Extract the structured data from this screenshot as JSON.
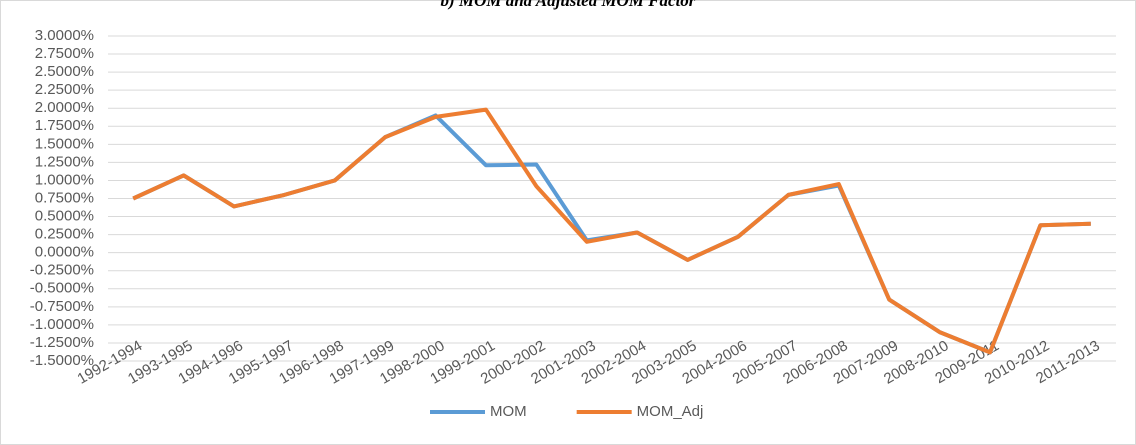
{
  "chart_data": {
    "type": "line",
    "title": "b) MOM and Adjusted MOM Factor",
    "categories": [
      "1992-1994",
      "1993-1995",
      "1994-1996",
      "1995-1997",
      "1996-1998",
      "1997-1999",
      "1998-2000",
      "1999-2001",
      "2000-2002",
      "2001-2003",
      "2002-2004",
      "2003-2005",
      "2004-2006",
      "2005-2007",
      "2006-2008",
      "2007-2009",
      "2008-2010",
      "2009-2011",
      "2010-2012",
      "2011-2013"
    ],
    "series": [
      {
        "name": "MOM",
        "color": "#5b9bd5",
        "values": [
          0.75,
          1.07,
          0.64,
          0.8,
          1.0,
          1.6,
          1.9,
          1.21,
          1.22,
          0.17,
          0.28,
          -0.1,
          0.22,
          0.8,
          0.93,
          -0.65,
          -1.1,
          -1.38,
          0.38,
          0.4
        ]
      },
      {
        "name": "MOM_Adj",
        "color": "#ed7d31",
        "values": [
          0.75,
          1.07,
          0.64,
          0.8,
          1.0,
          1.6,
          1.88,
          1.98,
          0.92,
          0.15,
          0.28,
          -0.1,
          0.22,
          0.8,
          0.95,
          -0.65,
          -1.1,
          -1.38,
          0.38,
          0.4
        ]
      }
    ],
    "ylim": [
      -1.5,
      3.0
    ],
    "yticks": [
      {
        "value": -1.5,
        "label": "-1.5000%"
      },
      {
        "value": -1.25,
        "label": "-1.2500%"
      },
      {
        "value": -1.0,
        "label": "-1.0000%"
      },
      {
        "value": -0.75,
        "label": "-0.7500%"
      },
      {
        "value": -0.5,
        "label": "-0.5000%"
      },
      {
        "value": -0.25,
        "label": "-0.2500%"
      },
      {
        "value": 0,
        "label": "0.0000%"
      },
      {
        "value": 0.25,
        "label": "0.2500%"
      },
      {
        "value": 0.5,
        "label": "0.5000%"
      },
      {
        "value": 0.75,
        "label": "0.7500%"
      },
      {
        "value": 1.0,
        "label": "1.0000%"
      },
      {
        "value": 1.25,
        "label": "1.2500%"
      },
      {
        "value": 1.5,
        "label": "1.5000%"
      },
      {
        "value": 1.75,
        "label": "1.7500%"
      },
      {
        "value": 2.0,
        "label": "2.0000%"
      },
      {
        "value": 2.25,
        "label": "2.2500%"
      },
      {
        "value": 2.5,
        "label": "2.5000%"
      },
      {
        "value": 2.75,
        "label": "2.7500%"
      },
      {
        "value": 3.0,
        "label": "3.0000%"
      }
    ],
    "grid": true,
    "legend": "bottom"
  }
}
